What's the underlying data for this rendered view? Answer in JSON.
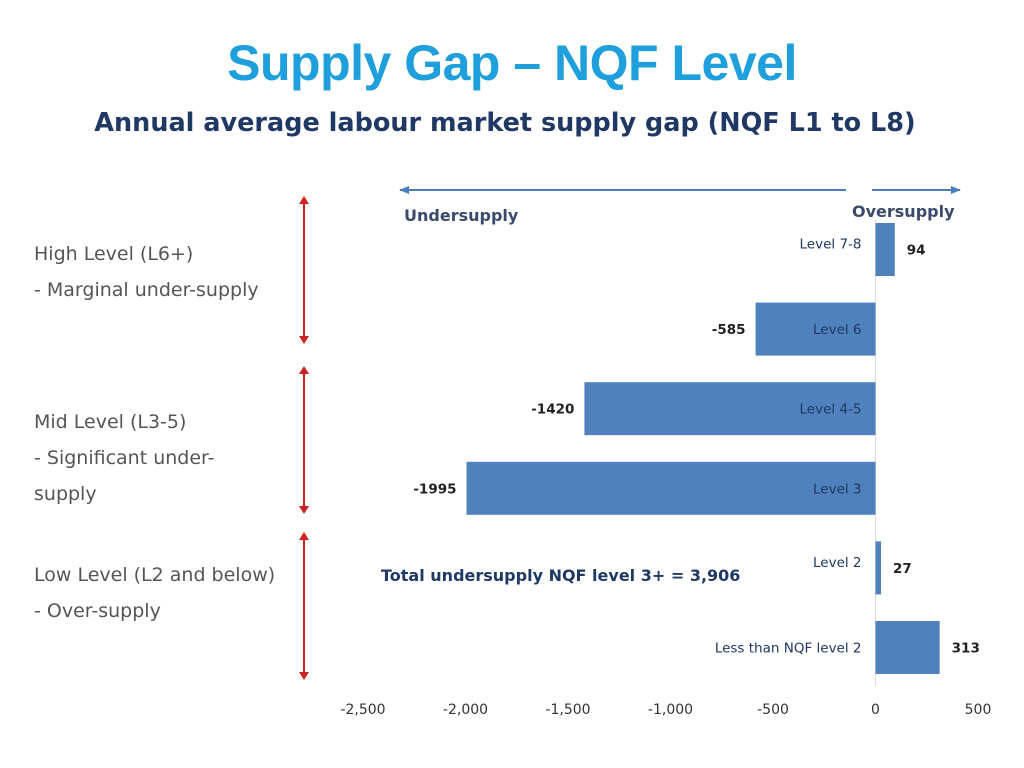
{
  "page": {
    "title": "Supply Gap – NQF Level",
    "subtitle": "Annual average labour market supply gap (NQF L1 to L8)"
  },
  "colors": {
    "title": "#1fa0dc",
    "subtitle": "#1f3864",
    "bar": "#4f81bd",
    "arrow_blue": "#4a7ebb",
    "arrow_red": "#cc2222",
    "text_dark": "#3a4a6a",
    "label_text": "#1f3864",
    "side_text": "#555555"
  },
  "side_notes": {
    "high": {
      "line1": "High Level (L6+)",
      "line2": "- Marginal under-supply"
    },
    "mid": {
      "line1": "Mid Level (L3-5)",
      "line2": "- Significant under-",
      "line3": "supply"
    },
    "low": {
      "line1": "Low Level (L2 and below)",
      "line2": "- Over-supply"
    }
  },
  "chart_data": {
    "type": "bar",
    "orientation": "horizontal",
    "categories": [
      "Level 7-8",
      "Level 6",
      "Level 4-5",
      "Level 3",
      "Level 2",
      "Less than NQF level 2"
    ],
    "values": [
      94,
      -585,
      -1420,
      -1995,
      27,
      313
    ],
    "data_labels": [
      "94",
      "-585",
      "-1420",
      "-1995",
      "27",
      "313"
    ],
    "xlim": [
      -2500,
      500
    ],
    "xticks": [
      -2500,
      -2000,
      -1500,
      -1000,
      -500,
      0,
      500
    ],
    "xtick_labels": [
      "-2,500",
      "-2,000",
      "-1,500",
      "-1,000",
      "-500",
      "0",
      "500"
    ],
    "direction_labels": {
      "left": "Undersupply",
      "right": "Oversupply"
    },
    "annotation": "Total undersupply NQF level 3+ = 3,906",
    "grid": false,
    "legend": "none"
  }
}
